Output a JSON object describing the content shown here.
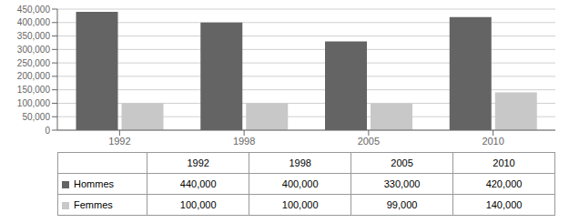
{
  "chart_data": {
    "type": "bar",
    "categories": [
      "1992",
      "1998",
      "2005",
      "2010"
    ],
    "series": [
      {
        "name": "Hommes",
        "color": "#646464",
        "values": [
          440000,
          400000,
          330000,
          420000
        ],
        "value_labels": [
          "440,000",
          "400,000",
          "330,000",
          "420,000"
        ]
      },
      {
        "name": "Femmes",
        "color": "#c8c8c8",
        "values": [
          100000,
          100000,
          99000,
          140000
        ],
        "value_labels": [
          "100,000",
          "100,000",
          "99,000",
          "140,000"
        ]
      }
    ],
    "ylim": [
      0,
      450000
    ],
    "yticks": [
      0,
      {
        "value": 50000,
        "label": "50,000"
      },
      {
        "value": 100000,
        "label": "100,000"
      },
      {
        "value": 150000,
        "label": "150,000"
      },
      {
        "value": 200000,
        "label": "200,000"
      },
      {
        "value": 250000,
        "label": "250,000"
      },
      {
        "value": 300000,
        "label": "300,000"
      },
      {
        "value": 350000,
        "label": "350,000"
      },
      {
        "value": 400000,
        "label": "400,000"
      },
      {
        "value": 450000,
        "label": "450,000"
      }
    ],
    "grid": true
  }
}
